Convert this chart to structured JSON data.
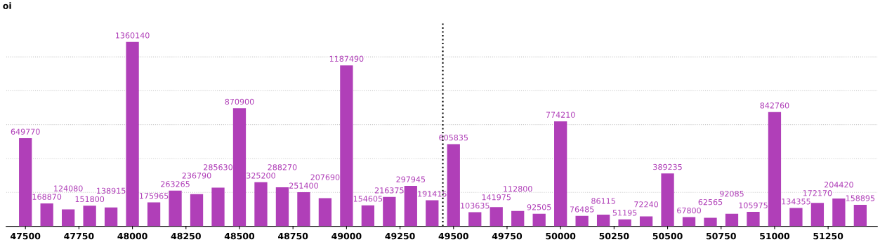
{
  "chart_data": {
    "type": "bar",
    "ylabel": "oi",
    "x": [
      47500,
      47600,
      47700,
      47800,
      47900,
      48000,
      48100,
      48200,
      48300,
      48400,
      48500,
      48600,
      48700,
      48800,
      48900,
      49000,
      49100,
      49200,
      49300,
      49400,
      49500,
      49600,
      49700,
      49800,
      49900,
      50000,
      50100,
      50200,
      50300,
      50400,
      50500,
      50600,
      50700,
      50800,
      50900,
      51000,
      51100,
      51200,
      51300,
      51400
    ],
    "series": [
      {
        "color": "#b03fb8",
        "values": [
          649770,
          168870,
          124080,
          151800,
          138915,
          1360140,
          175965,
          263265,
          236790,
          285630,
          870900,
          325200,
          288270,
          251400,
          207690,
          1187490,
          154605,
          216375,
          297945,
          191415,
          605835,
          103635,
          141975,
          112800,
          92505,
          774210,
          76485,
          86115,
          51195,
          72240,
          389235,
          67800,
          62565,
          92085,
          105975,
          842760,
          134355,
          172170,
          204420,
          158895
        ]
      }
    ],
    "data_labels": true,
    "xlim": [
      47410,
      51480
    ],
    "xticks": [
      47500,
      47750,
      48000,
      48250,
      48500,
      48750,
      49000,
      49250,
      49500,
      49750,
      50000,
      50250,
      50500,
      50750,
      51000,
      51250
    ],
    "ylim": [
      0,
      1500000
    ],
    "yticks": [
      {
        "value": 0,
        "label": null
      },
      {
        "value": 250000,
        "label": null
      },
      {
        "value": 500000,
        "label": null
      },
      {
        "value": 750000,
        "label": null
      },
      {
        "value": 1000000,
        "label": null
      },
      {
        "value": 1250000,
        "label": null
      }
    ],
    "grid": "y",
    "ref_lines": [
      {
        "axis": "x",
        "value": 49450,
        "color": "#000000",
        "line_style": "dotted"
      }
    ]
  }
}
